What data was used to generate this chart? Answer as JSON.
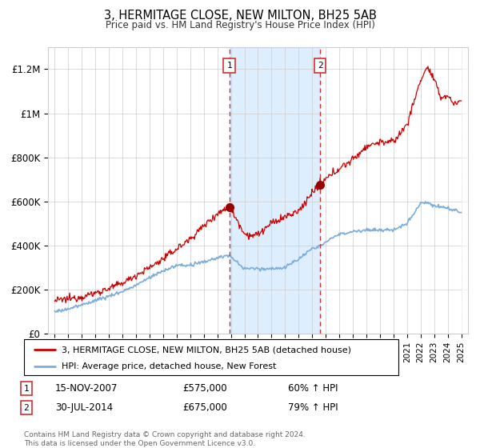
{
  "title": "3, HERMITAGE CLOSE, NEW MILTON, BH25 5AB",
  "subtitle": "Price paid vs. HM Land Registry's House Price Index (HPI)",
  "legend_line1": "3, HERMITAGE CLOSE, NEW MILTON, BH25 5AB (detached house)",
  "legend_line2": "HPI: Average price, detached house, New Forest",
  "sale1_date": "15-NOV-2007",
  "sale1_price": "£575,000",
  "sale1_hpi": "60% ↑ HPI",
  "sale1_year": 2007.88,
  "sale2_date": "30-JUL-2014",
  "sale2_price": "£675,000",
  "sale2_hpi": "79% ↑ HPI",
  "sale2_year": 2014.58,
  "footer": "Contains HM Land Registry data © Crown copyright and database right 2024.\nThis data is licensed under the Open Government Licence v3.0.",
  "red_color": "#cc0000",
  "blue_color": "#7aacdc",
  "shade_color": "#ddeeff",
  "ylim_max": 1300000,
  "xlim_start": 1994.5,
  "xlim_end": 2025.5
}
